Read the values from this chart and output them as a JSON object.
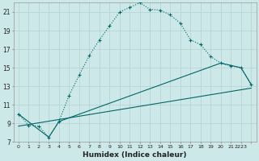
{
  "xlabel": "Humidex (Indice chaleur)",
  "background_color": "#cce8e8",
  "grid_color": "#b8d4d4",
  "line_color": "#006666",
  "xlim": [
    0,
    23
  ],
  "ylim": [
    7,
    22
  ],
  "yticks": [
    7,
    9,
    11,
    13,
    15,
    17,
    19,
    21
  ],
  "xtick_positions": [
    0,
    1,
    2,
    3,
    4,
    5,
    6,
    7,
    8,
    9,
    10,
    11,
    12,
    13,
    14,
    15,
    16,
    17,
    18,
    19,
    20,
    21,
    22,
    23
  ],
  "xtick_labels": [
    "0",
    "1",
    "2",
    "3",
    "4",
    "5",
    "6",
    "7",
    "8",
    "9",
    "10",
    "11",
    "12",
    "13",
    "14",
    "15",
    "16",
    "17",
    "18",
    "19",
    "20",
    "21",
    "2223",
    ""
  ],
  "line1_x": [
    0,
    1,
    2,
    3,
    4,
    5,
    6,
    7,
    8,
    9,
    10,
    11,
    12,
    13,
    14,
    15,
    16,
    17,
    18,
    19,
    20,
    21,
    22,
    23
  ],
  "line1_y": [
    10.0,
    8.8,
    8.7,
    7.5,
    9.2,
    12.0,
    14.2,
    16.3,
    18.0,
    19.5,
    21.0,
    21.5,
    22.0,
    21.3,
    21.2,
    20.7,
    19.8,
    18.0,
    17.5,
    16.2,
    15.5,
    15.2,
    15.0,
    13.2
  ],
  "line2_x": [
    0,
    3,
    4,
    20,
    22,
    23
  ],
  "line2_y": [
    10.0,
    7.5,
    9.2,
    15.5,
    15.0,
    13.2
  ],
  "line3_x": [
    0,
    23
  ],
  "line3_y": [
    8.7,
    12.8
  ]
}
